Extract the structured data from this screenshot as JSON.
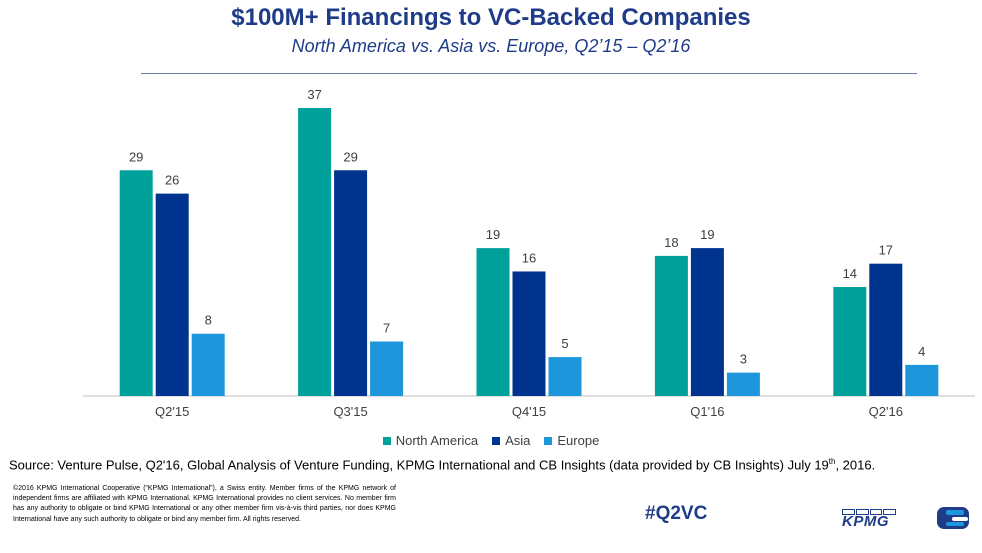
{
  "title": "$100M+ Financings to VC-Backed Companies",
  "subtitle": "North America vs. Asia vs. Europe, Q2’15 – Q2’16",
  "chart_data": {
    "type": "bar",
    "categories": [
      "Q2'15",
      "Q3'15",
      "Q4'15",
      "Q1'16",
      "Q2'16"
    ],
    "series": [
      {
        "name": "North America",
        "color": "#00a19a",
        "values": [
          29,
          37,
          19,
          18,
          14
        ]
      },
      {
        "name": "Asia",
        "color": "#00338d",
        "values": [
          26,
          29,
          16,
          19,
          17
        ]
      },
      {
        "name": "Europe",
        "color": "#1e96dc",
        "values": [
          8,
          7,
          5,
          3,
          4
        ]
      }
    ],
    "ylim": [
      0,
      37
    ],
    "grid": false,
    "legend": "bottom",
    "xlabel": "",
    "ylabel": ""
  },
  "legend": {
    "items": [
      "North America",
      "Asia",
      "Europe"
    ]
  },
  "source": {
    "text_before": "Source: Venture Pulse, Q2'16, Global Analysis of Venture Funding, KPMG International and CB Insights (data provided by CB Insights) July 19",
    "sup": "th",
    "text_after": ", 2016."
  },
  "copyright": "©2016 KPMG International Cooperative (“KPMG International”), a Swiss entity. Member firms of the KPMG network of independent firms are affiliated with KPMG International. KPMG International provides no client services. No member firm has any authority to obligate or bind KPMG International or any other member firm vis-à-vis third parties, nor does KPMG International have any such authority to obligate or bind any member firm. All rights reserved.",
  "hashtag": "#Q2VC",
  "logo": {
    "text": "KPMG"
  },
  "colors": {
    "title": "#1f3c88",
    "axis": "#bfbfbf",
    "label": "#404040"
  }
}
